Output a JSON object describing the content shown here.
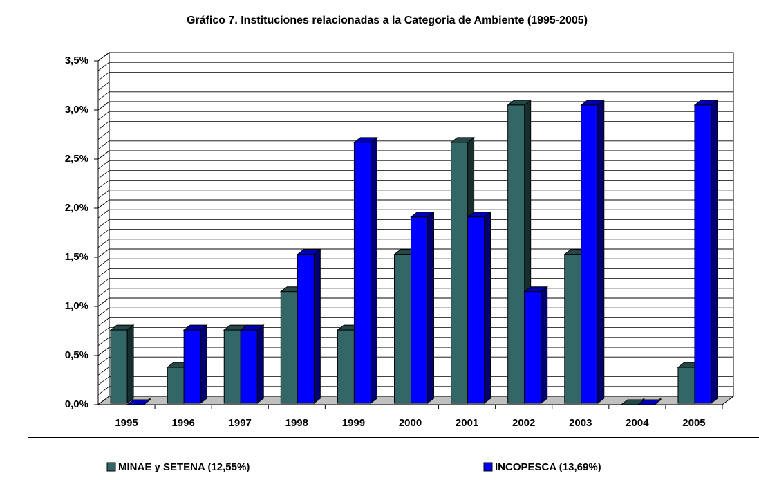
{
  "chart_data": {
    "type": "bar3d",
    "title": "Gráfico 7. Instituciones relacionadas a la Categoria de Ambiente (1995-2005)",
    "categories": [
      "1995",
      "1996",
      "1997",
      "1998",
      "1999",
      "2000",
      "2001",
      "2002",
      "2003",
      "2004",
      "2005"
    ],
    "series": [
      {
        "name": "MINAE y SETENA (12,55%)",
        "color": "#336666",
        "values": [
          0.76,
          0.38,
          0.76,
          1.15,
          0.76,
          1.53,
          2.67,
          3.05,
          1.53,
          0,
          0.38
        ]
      },
      {
        "name": "INCOPESCA (13,69%)",
        "color": "#0000ff",
        "values": [
          0,
          0.76,
          0.76,
          1.53,
          2.67,
          1.91,
          1.91,
          1.15,
          3.05,
          0,
          3.05
        ]
      }
    ],
    "ylim": [
      0,
      3.5
    ],
    "yticks": [
      {
        "value": 0,
        "label": "0,0%"
      },
      {
        "value": 0.5,
        "label": "0,5%"
      },
      {
        "value": 1,
        "label": "1,0%"
      },
      {
        "value": 1.5,
        "label": "1,5%"
      },
      {
        "value": 2,
        "label": "2,0%"
      },
      {
        "value": 2.5,
        "label": "2,5%"
      },
      {
        "value": 3,
        "label": "3,0%"
      },
      {
        "value": 3.5,
        "label": "3,5%"
      }
    ],
    "grid": true,
    "legend": "bottom"
  }
}
